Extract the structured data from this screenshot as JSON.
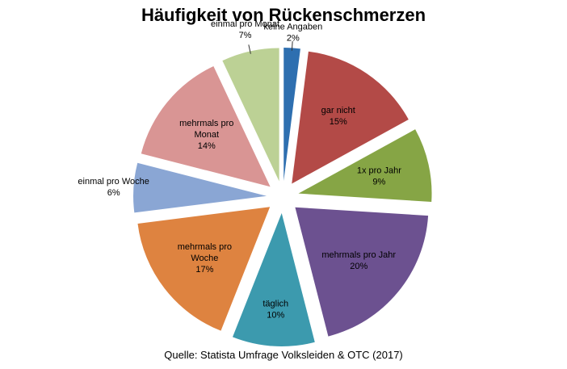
{
  "chart_data": {
    "type": "pie",
    "title": "Häufigkeit von Rückenschmerzen",
    "source": "Quelle: Statista Umfrage Volksleiden & OTC (2017)",
    "slices": [
      {
        "label": [
          "keine Angaben"
        ],
        "percent_label": "2%",
        "value": 2,
        "color": "#2e6fb0"
      },
      {
        "label": [
          "gar nicht"
        ],
        "percent_label": "15%",
        "value": 15,
        "color": "#b34a47"
      },
      {
        "label": [
          "1x pro Jahr"
        ],
        "percent_label": "9%",
        "value": 9,
        "color": "#86a545"
      },
      {
        "label": [
          "mehrmals pro Jahr"
        ],
        "percent_label": "20%",
        "value": 20,
        "color": "#6c5190"
      },
      {
        "label": [
          "täglich"
        ],
        "percent_label": "10%",
        "value": 10,
        "color": "#3c9aae"
      },
      {
        "label": [
          "mehrmals pro",
          "Woche"
        ],
        "percent_label": "17%",
        "value": 17,
        "color": "#de8340"
      },
      {
        "label": [
          "einmal pro Woche"
        ],
        "percent_label": "6%",
        "value": 6,
        "color": "#8aa6d4"
      },
      {
        "label": [
          "mehrmals pro",
          "Monat"
        ],
        "percent_label": "14%",
        "value": 14,
        "color": "#d99594"
      },
      {
        "label": [
          "einmal pro Monat"
        ],
        "percent_label": "7%",
        "value": 7,
        "color": "#bcd195"
      }
    ]
  }
}
